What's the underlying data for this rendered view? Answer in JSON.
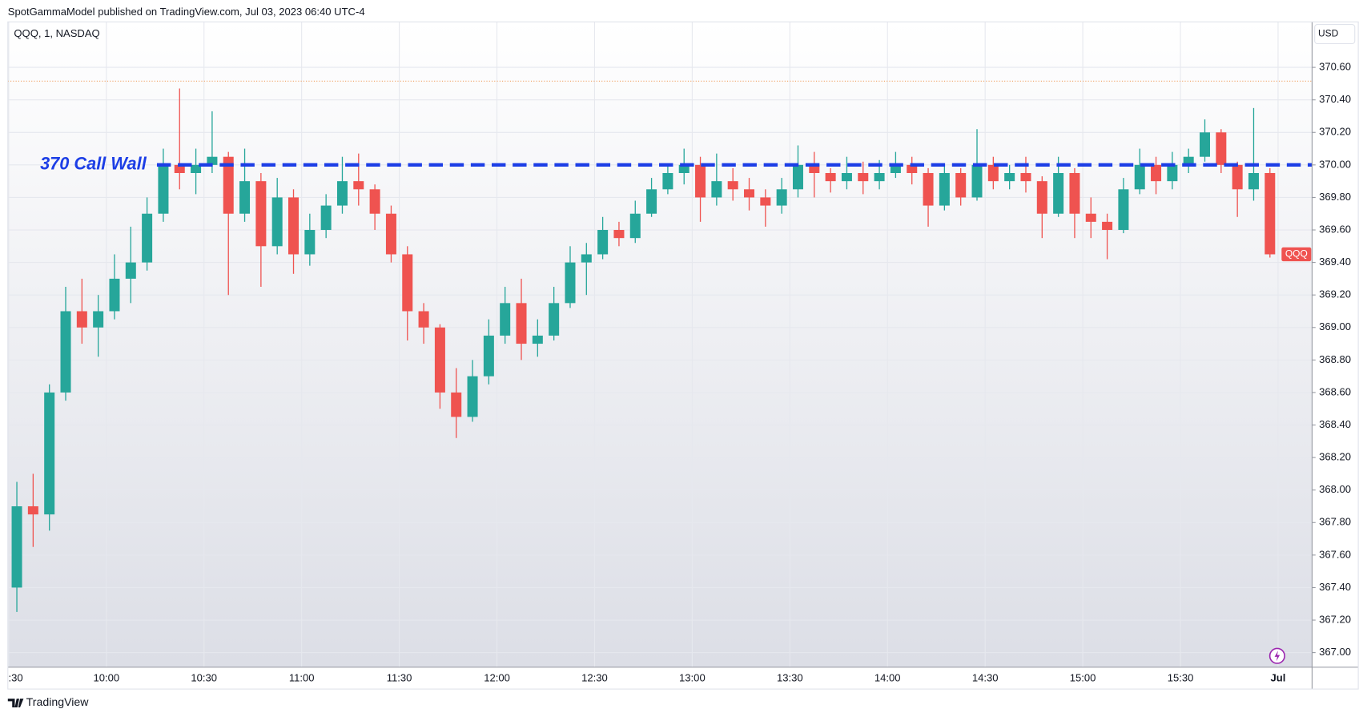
{
  "chart_data": {
    "type": "candlestick",
    "publisher_note": "SpotGammaModel published on TradingView.com, Jul 03, 2023 06:40 UTC-4",
    "symbol_info": "QQQ, 1, NASDAQ",
    "currency": "USD",
    "brand": "TradingView",
    "symbol_tag": "QQQ",
    "up_color": "#26a69a",
    "down_color": "#ef5350",
    "grid": true,
    "x": [
      "09:30",
      "09:35",
      "09:40",
      "09:45",
      "09:50",
      "09:55",
      "10:00",
      "10:05",
      "10:10",
      "10:15",
      "10:20",
      "10:25",
      "10:30",
      "10:35",
      "10:40",
      "10:45",
      "10:50",
      "10:55",
      "11:00",
      "11:05",
      "11:10",
      "11:15",
      "11:20",
      "11:25",
      "11:30",
      "11:35",
      "11:40",
      "11:45",
      "11:50",
      "11:55",
      "12:00",
      "12:05",
      "12:10",
      "12:15",
      "12:20",
      "12:25",
      "12:30",
      "12:35",
      "12:40",
      "12:45",
      "12:50",
      "12:55",
      "13:00",
      "13:05",
      "13:10",
      "13:15",
      "13:20",
      "13:25",
      "13:30",
      "13:35",
      "13:40",
      "13:45",
      "13:50",
      "13:55",
      "14:00",
      "14:05",
      "14:10",
      "14:15",
      "14:20",
      "14:25",
      "14:30",
      "14:35",
      "14:40",
      "14:45",
      "14:50",
      "14:55",
      "15:00",
      "15:05",
      "15:10",
      "15:15",
      "15:20",
      "15:25",
      "15:30",
      "15:35",
      "15:40",
      "15:45",
      "15:50",
      "15:55"
    ],
    "open": [
      367.4,
      367.9,
      367.85,
      368.6,
      369.1,
      369.0,
      369.1,
      369.3,
      369.4,
      369.7,
      370.0,
      369.95,
      370.0,
      370.05,
      369.7,
      369.9,
      369.5,
      369.8,
      369.45,
      369.6,
      369.75,
      369.9,
      369.85,
      369.7,
      369.45,
      369.1,
      369.0,
      368.6,
      368.45,
      368.7,
      368.95,
      369.15,
      368.9,
      368.95,
      369.15,
      369.4,
      369.45,
      369.6,
      369.55,
      369.7,
      369.85,
      369.95,
      370.0,
      369.8,
      369.9,
      369.85,
      369.8,
      369.75,
      369.85,
      370.0,
      369.95,
      369.9,
      369.95,
      369.9,
      369.95,
      370.0,
      369.95,
      369.75,
      369.95,
      369.8,
      370.0,
      369.9,
      369.95,
      369.9,
      369.7,
      369.95,
      369.7,
      369.65,
      369.6,
      369.85,
      370.0,
      369.9,
      370.0,
      370.05,
      370.2,
      370.0,
      369.85,
      369.95
    ],
    "high": [
      368.05,
      368.1,
      368.65,
      369.25,
      369.3,
      369.2,
      369.45,
      369.62,
      369.8,
      370.1,
      370.47,
      370.1,
      370.33,
      370.08,
      370.1,
      369.95,
      369.92,
      369.85,
      369.7,
      369.82,
      370.05,
      370.07,
      369.88,
      369.75,
      369.5,
      369.15,
      369.02,
      368.75,
      368.8,
      369.05,
      369.25,
      369.3,
      369.05,
      369.25,
      369.5,
      369.52,
      369.68,
      369.65,
      369.78,
      369.92,
      370.0,
      370.1,
      370.05,
      370.07,
      369.98,
      369.92,
      369.85,
      369.92,
      370.12,
      370.08,
      369.98,
      370.05,
      370.02,
      370.03,
      370.08,
      370.05,
      369.98,
      370.0,
      369.98,
      370.22,
      370.05,
      370.0,
      370.05,
      369.93,
      370.05,
      369.98,
      369.8,
      369.7,
      369.92,
      370.1,
      370.05,
      370.08,
      370.1,
      370.28,
      370.22,
      370.02,
      370.35,
      369.98
    ],
    "low": [
      367.25,
      367.65,
      367.75,
      368.55,
      368.9,
      368.82,
      369.05,
      369.15,
      369.35,
      369.65,
      369.85,
      369.82,
      369.95,
      369.2,
      369.65,
      369.25,
      369.45,
      369.33,
      369.38,
      369.55,
      369.7,
      369.75,
      369.6,
      369.4,
      368.92,
      368.9,
      368.5,
      368.32,
      368.42,
      368.65,
      368.9,
      368.8,
      368.82,
      368.92,
      369.12,
      369.2,
      369.42,
      369.5,
      369.52,
      369.68,
      369.82,
      369.88,
      369.65,
      369.75,
      369.78,
      369.72,
      369.62,
      369.7,
      369.8,
      369.8,
      369.83,
      369.85,
      369.82,
      369.85,
      369.92,
      369.88,
      369.62,
      369.72,
      369.75,
      369.78,
      369.85,
      369.85,
      369.83,
      369.55,
      369.68,
      369.55,
      369.55,
      369.42,
      369.58,
      369.82,
      369.82,
      369.85,
      369.95,
      370.02,
      369.95,
      369.68,
      369.78,
      369.43
    ],
    "close": [
      367.9,
      367.85,
      368.6,
      369.1,
      369.0,
      369.1,
      369.3,
      369.4,
      369.7,
      370.0,
      369.95,
      370.0,
      370.05,
      369.7,
      369.9,
      369.5,
      369.8,
      369.45,
      369.6,
      369.75,
      369.9,
      369.85,
      369.7,
      369.45,
      369.1,
      369.0,
      368.6,
      368.45,
      368.7,
      368.95,
      369.15,
      368.9,
      368.95,
      369.15,
      369.4,
      369.45,
      369.6,
      369.55,
      369.7,
      369.85,
      369.95,
      370.0,
      369.8,
      369.9,
      369.85,
      369.8,
      369.75,
      369.85,
      370.0,
      369.95,
      369.9,
      369.95,
      369.9,
      369.95,
      370.0,
      369.95,
      369.75,
      369.95,
      369.8,
      370.0,
      369.9,
      369.95,
      369.9,
      369.7,
      369.95,
      369.7,
      369.65,
      369.6,
      369.85,
      370.0,
      369.9,
      370.0,
      370.05,
      370.2,
      370.0,
      369.85,
      369.95,
      369.45
    ],
    "xlim": [
      "09:30",
      "16:00"
    ],
    "xticks": [
      {
        "value": "09:30",
        "label": ":30"
      },
      "10:00",
      "10:30",
      "11:00",
      "11:30",
      "12:00",
      "12:30",
      "13:00",
      "13:30",
      "14:00",
      "14:30",
      "15:00",
      "15:30",
      {
        "value": "16:00",
        "label": "Jul"
      }
    ],
    "ylim": [
      366.91,
      370.88
    ],
    "yticks": [
      {
        "value": 367.0,
        "label": "367.00"
      },
      {
        "value": 367.2,
        "label": "367.20"
      },
      {
        "value": 367.4,
        "label": "367.40"
      },
      {
        "value": 367.6,
        "label": "367.60"
      },
      {
        "value": 367.8,
        "label": "367.80"
      },
      {
        "value": 368.0,
        "label": "368.00"
      },
      {
        "value": 368.2,
        "label": "368.20"
      },
      {
        "value": 368.4,
        "label": "368.40"
      },
      {
        "value": 368.6,
        "label": "368.60"
      },
      {
        "value": 368.8,
        "label": "368.80"
      },
      {
        "value": 369.0,
        "label": "369.00"
      },
      {
        "value": 369.2,
        "label": "369.20"
      },
      {
        "value": 369.4,
        "label": "369.40"
      },
      {
        "value": 369.6,
        "label": "369.60"
      },
      {
        "value": 369.8,
        "label": "369.80"
      },
      {
        "value": 370.0,
        "label": "370.00"
      },
      {
        "value": 370.2,
        "label": "370.20"
      },
      {
        "value": 370.4,
        "label": "370.40"
      },
      {
        "value": 370.6,
        "label": "370.60"
      }
    ],
    "call_wall": {
      "text": "370 Call Wall",
      "value": 370.0,
      "color": "#1c3ee6"
    },
    "reference_line": {
      "value": 370.515,
      "color": "#f0a060"
    }
  }
}
